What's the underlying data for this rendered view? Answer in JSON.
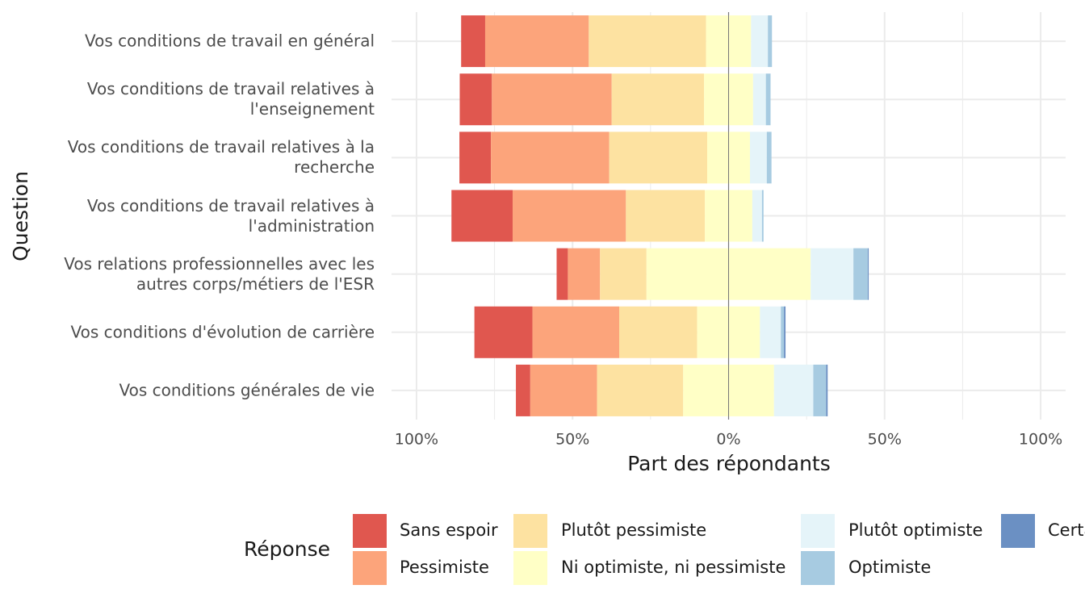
{
  "chart_data": {
    "type": "diverging_bar",
    "x_label": "Part des répondants",
    "y_label": "Question",
    "legend_title": "Réponse",
    "categories": [
      "Vos conditions de travail en général",
      "Vos conditions de travail relatives à\nl'enseignement",
      "Vos conditions de travail relatives à la\nrecherche",
      "Vos conditions de travail relatives à\nl'administration",
      "Vos relations professionnelles avec les\nautres corps/métiers de l'ESR",
      "Vos conditions d'évolution de carrière",
      "Vos conditions générales de vie"
    ],
    "series": [
      {
        "name": "Sans espoir",
        "color": "#e0574f",
        "values": [
          7.7,
          10.3,
          10.1,
          19.6,
          3.6,
          18.6,
          4.6
        ]
      },
      {
        "name": "Pessimiste",
        "color": "#fca47b",
        "values": [
          33.2,
          38.4,
          37.9,
          36.3,
          10.3,
          27.8,
          21.4
        ]
      },
      {
        "name": "Plutôt pessimiste",
        "color": "#fde2a1",
        "values": [
          37.6,
          29.6,
          31.4,
          25.3,
          14.9,
          25.0,
          27.6
        ]
      },
      {
        "name": "Ni optimiste, ni pessimiste",
        "color": "#ffffc6",
        "values": [
          14.4,
          15.7,
          13.7,
          15.2,
          52.6,
          20.1,
          29.1
        ]
      },
      {
        "name": "Plutôt optimiste",
        "color": "#e5f4f9",
        "values": [
          5.4,
          4.1,
          5.4,
          3.1,
          13.7,
          6.7,
          12.6
        ]
      },
      {
        "name": "Optimiste",
        "color": "#a7cbe1",
        "values": [
          1.3,
          1.5,
          1.5,
          0.5,
          4.6,
          1.0,
          4.1
        ]
      },
      {
        "name": "Certain",
        "color": "#6b90c3",
        "values": [
          0,
          0,
          0,
          0,
          0.3,
          0.5,
          0.5
        ]
      }
    ],
    "negative_series": 3,
    "neutral_series": 3,
    "xlim": [
      -108,
      108
    ],
    "xticks": [
      {
        "value": -100,
        "label": "100%"
      },
      {
        "value": -50,
        "label": "50%"
      },
      {
        "value": 0,
        "label": "0%"
      },
      {
        "value": 50,
        "label": "50%"
      },
      {
        "value": 100,
        "label": "100%"
      }
    ],
    "grid": true
  }
}
